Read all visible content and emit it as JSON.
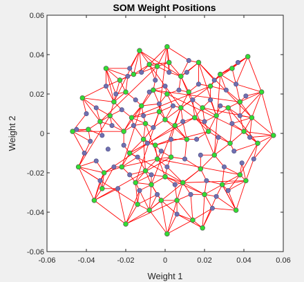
{
  "chart_data": {
    "type": "scatter",
    "title": "SOM Weight Positions",
    "xlabel": "Weight 1",
    "ylabel": "Weight 2",
    "xlim": [
      -0.06,
      0.06
    ],
    "ylim": [
      -0.06,
      0.06
    ],
    "xticks": [
      -0.06,
      -0.04,
      -0.02,
      0,
      0.02,
      0.04,
      0.06
    ],
    "yticks": [
      -0.06,
      -0.04,
      -0.02,
      0,
      0.02,
      0.04,
      0.06
    ],
    "xtick_labels": [
      "-0.06",
      "-0.04",
      "-0.02",
      "0",
      "0.02",
      "0.04",
      "0.06"
    ],
    "ytick_labels": [
      "-0.06",
      "-0.04",
      "-0.02",
      "0",
      "0.02",
      "0.04",
      "0.06"
    ],
    "grid": false,
    "colors": {
      "neighbor_lines": "#ff0000",
      "weight_points": "#33dd33",
      "input_points": "#7070b0",
      "marker_edge": "#555555"
    },
    "series": [
      {
        "marker": "circle-green",
        "values": [
          [
            -0.047,
            0.001
          ],
          [
            -0.044,
            -0.017
          ],
          [
            -0.042,
            0.018
          ],
          [
            -0.039,
            0.002
          ],
          [
            -0.036,
            -0.034
          ],
          [
            -0.033,
            0.006
          ],
          [
            -0.032,
            -0.028
          ],
          [
            -0.031,
            -0.02
          ],
          [
            -0.03,
            0.033
          ],
          [
            -0.028,
            0.009
          ],
          [
            -0.026,
            0.016
          ],
          [
            -0.023,
            0.027
          ],
          [
            -0.022,
            -0.017
          ],
          [
            -0.021,
            0.001
          ],
          [
            -0.02,
            0.021
          ],
          [
            -0.02,
            -0.046
          ],
          [
            -0.018,
            -0.01
          ],
          [
            -0.017,
            0.008
          ],
          [
            -0.016,
            0.03
          ],
          [
            -0.015,
            -0.025
          ],
          [
            -0.014,
            -0.036
          ],
          [
            -0.013,
            0.042
          ],
          [
            -0.012,
            0.014
          ],
          [
            -0.011,
            -0.003
          ],
          [
            -0.01,
            -0.019
          ],
          [
            -0.01,
            0.005
          ],
          [
            -0.008,
            0.035
          ],
          [
            -0.008,
            -0.039
          ],
          [
            -0.007,
            -0.026
          ],
          [
            -0.006,
            0.022
          ],
          [
            -0.005,
            -0.006
          ],
          [
            -0.004,
            0.034
          ],
          [
            -0.004,
            -0.013
          ],
          [
            -0.003,
            0.011
          ],
          [
            -0.002,
            -0.034
          ],
          [
            0.001,
            0.044
          ],
          [
            0.001,
            -0.051
          ],
          [
            0,
            0.007
          ],
          [
            0,
            -0.022
          ],
          [
            0.002,
            0.036
          ],
          [
            0.001,
            0.02
          ],
          [
            0.003,
            -0.012
          ],
          [
            0.005,
            0.004
          ],
          [
            0.006,
            -0.034
          ],
          [
            0.008,
            0.029
          ],
          [
            0.008,
            0.013
          ],
          [
            0.009,
            -0.025
          ],
          [
            0.011,
            -0.003
          ],
          [
            0.012,
            0.021
          ],
          [
            0.014,
            -0.044
          ],
          [
            0.015,
            0.008
          ],
          [
            0.017,
            0.036
          ],
          [
            0.018,
            -0.018
          ],
          [
            0.019,
            0.013
          ],
          [
            0.02,
            -0.031
          ],
          [
            0.019,
            -0.048
          ],
          [
            0.022,
            0.001
          ],
          [
            0.023,
            0.024
          ],
          [
            0.025,
            -0.011
          ],
          [
            0.026,
            0.009
          ],
          [
            0.028,
            0.03
          ],
          [
            0.029,
            -0.026
          ],
          [
            0.032,
            0.013
          ],
          [
            0.033,
            -0.005
          ],
          [
            0.034,
            0.033
          ],
          [
            0.036,
            -0.039
          ],
          [
            0.038,
            0.016
          ],
          [
            0.038,
            -0.021
          ],
          [
            0.04,
            0.001
          ],
          [
            0.041,
            -0.024
          ],
          [
            0.044,
            0.008
          ],
          [
            0.042,
            0.039
          ],
          [
            0.047,
            -0.005
          ],
          [
            0.049,
            0.021
          ],
          [
            0.055,
            -0.001
          ]
        ]
      },
      {
        "marker": "circle-blue",
        "values": [
          [
            -0.045,
            0.002
          ],
          [
            -0.041,
            -0.01
          ],
          [
            -0.04,
            0.01
          ],
          [
            -0.038,
            -0.004
          ],
          [
            -0.035,
            0.013
          ],
          [
            -0.035,
            -0.014
          ],
          [
            -0.033,
            -0.024
          ],
          [
            -0.03,
            0.024
          ],
          [
            -0.029,
            -0.008
          ],
          [
            -0.027,
            0.004
          ],
          [
            -0.026,
            -0.017
          ],
          [
            -0.025,
            0.02
          ],
          [
            -0.024,
            -0.028
          ],
          [
            -0.022,
            0.012
          ],
          [
            -0.021,
            -0.006
          ],
          [
            -0.019,
            0.029
          ],
          [
            -0.018,
            -0.021
          ],
          [
            -0.016,
            0.004
          ],
          [
            -0.015,
            0.017
          ],
          [
            -0.014,
            -0.012
          ],
          [
            -0.013,
            -0.029
          ],
          [
            -0.012,
            0.031
          ],
          [
            -0.011,
            0.009
          ],
          [
            -0.009,
            -0.005
          ],
          [
            -0.008,
            0.021
          ],
          [
            -0.007,
            -0.021
          ],
          [
            -0.006,
            0.003
          ],
          [
            -0.005,
            0.027
          ],
          [
            -0.004,
            -0.031
          ],
          [
            -0.003,
            0.015
          ],
          [
            -0.002,
            -0.009
          ],
          [
            0,
            0.024
          ],
          [
            0.001,
            -0.017
          ],
          [
            0.002,
            0.031
          ],
          [
            0.003,
            -0.003
          ],
          [
            0.004,
            0.014
          ],
          [
            0.005,
            -0.026
          ],
          [
            0.006,
            -0.041
          ],
          [
            0.007,
            0.022
          ],
          [
            0.009,
            0.006
          ],
          [
            0.01,
            -0.013
          ],
          [
            0.011,
            0.031
          ],
          [
            0.013,
            -0.031
          ],
          [
            0.014,
            0.017
          ],
          [
            0.016,
            -0.003
          ],
          [
            0.017,
            0.025
          ],
          [
            0.018,
            -0.011
          ],
          [
            0.02,
            0.006
          ],
          [
            0.021,
            -0.024
          ],
          [
            0.023,
            0.017
          ],
          [
            0.024,
            -0.038
          ],
          [
            0.025,
            0.027
          ],
          [
            0.027,
            -0.002
          ],
          [
            0.028,
            0.014
          ],
          [
            0.03,
            -0.017
          ],
          [
            0.031,
            0.022
          ],
          [
            0.032,
            -0.029
          ],
          [
            0.034,
            0.005
          ],
          [
            0.035,
            -0.009
          ],
          [
            0.036,
            0.025
          ],
          [
            0.038,
            0.009
          ],
          [
            0.039,
            -0.015
          ],
          [
            0.041,
            0.019
          ],
          [
            0.043,
            -0.002
          ],
          [
            0.045,
            -0.013
          ],
          [
            0.037,
            0.036
          ],
          [
            0.012,
            0.037
          ],
          [
            -0.018,
            0.033
          ],
          [
            -0.032,
            -0.001
          ],
          [
            0.026,
            -0.032
          ]
        ]
      }
    ]
  }
}
